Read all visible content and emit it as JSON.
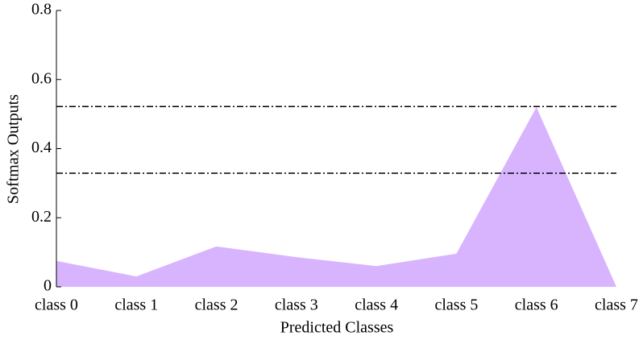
{
  "chart_data": {
    "type": "area",
    "x_label": "Predicted Classes",
    "y_label": "Softmax Outputs",
    "categories": [
      "class 0",
      "class 1",
      "class 2",
      "class 3",
      "class 4",
      "class 5",
      "class 6",
      "class 7"
    ],
    "values": [
      0.075,
      0.03,
      0.117,
      0.086,
      0.06,
      0.096,
      0.52,
      0.0
    ],
    "color": "#d8b4fe",
    "ylim": [
      0,
      0.8
    ],
    "yticks": [
      0,
      0.2,
      0.4,
      0.6,
      0.8
    ],
    "hlines": [
      0.522,
      0.329
    ],
    "hline_color": "#000000"
  }
}
